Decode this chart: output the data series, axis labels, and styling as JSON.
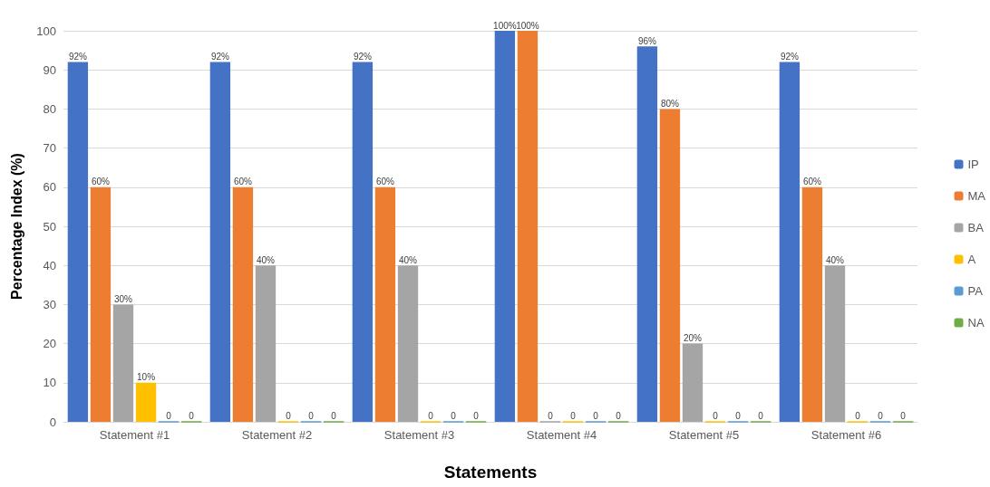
{
  "chart_data": {
    "type": "bar",
    "xlabel": "Statements",
    "ylabel": "Percentage Index (%)",
    "categories": [
      "Statement #1",
      "Statement #2",
      "Statement #3",
      "Statement #4",
      "Statement #5",
      "Statement #6"
    ],
    "series": [
      {
        "name": "IP",
        "color": "#4472c4",
        "values": [
          92,
          92,
          92,
          100,
          96,
          92
        ],
        "value_labels": [
          "92%",
          "92%",
          "92%",
          "100%",
          "96%",
          "92%"
        ]
      },
      {
        "name": "MA",
        "color": "#ed7d31",
        "values": [
          60,
          60,
          60,
          100,
          80,
          60
        ],
        "value_labels": [
          "60%",
          "60%",
          "60%",
          "100%",
          "80%",
          "60%"
        ]
      },
      {
        "name": "BA",
        "color": "#a5a5a5",
        "values": [
          30,
          40,
          40,
          0,
          20,
          40
        ],
        "value_labels": [
          "30%",
          "40%",
          "40%",
          "0",
          "20%",
          "40%"
        ]
      },
      {
        "name": "A",
        "color": "#ffc000",
        "values": [
          10,
          0,
          0,
          0,
          0,
          0
        ],
        "value_labels": [
          "10%",
          "0",
          "0",
          "0",
          "0",
          "0"
        ]
      },
      {
        "name": "PA",
        "color": "#5b9bd5",
        "values": [
          0,
          0,
          0,
          0,
          0,
          0
        ],
        "value_labels": [
          "0",
          "0",
          "0",
          "0",
          "0",
          "0"
        ]
      },
      {
        "name": "NA",
        "color": "#70ad47",
        "values": [
          0,
          0,
          0,
          0,
          0,
          0
        ],
        "value_labels": [
          "0",
          "0",
          "0",
          "0",
          "0",
          "0"
        ]
      }
    ],
    "ylim": [
      0,
      100
    ],
    "yticks": [
      0,
      10,
      20,
      30,
      40,
      50,
      60,
      70,
      80,
      90,
      100
    ],
    "grid": "y",
    "legend": "right"
  }
}
